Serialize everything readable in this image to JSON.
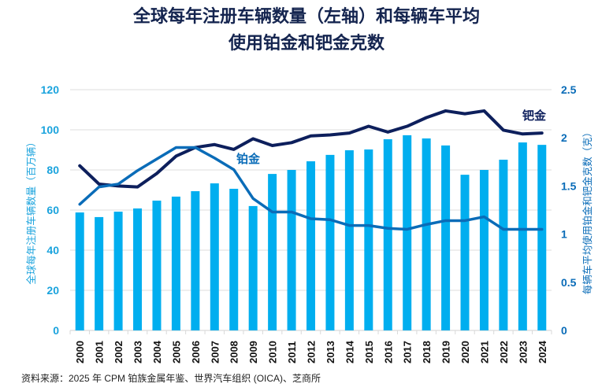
{
  "chart_data": {
    "type": "bar+line",
    "title_line1": "全球每年注册车辆数量（左轴）和每辆车平均",
    "title_line2": "使用铂金和钯金克数",
    "ylabel_left": "全球每年注册车辆数量（百万辆）",
    "ylabel_right": "每辆车平均使用铂金和钯金克数（克）",
    "ylim_left": [
      0,
      120
    ],
    "yticks_left": [
      "0",
      "20",
      "40",
      "60",
      "80",
      "100",
      "120"
    ],
    "ylim_right": [
      0,
      2.5
    ],
    "yticks_right": [
      "0",
      "0.5",
      "1",
      "1.5",
      "2",
      "2.5"
    ],
    "grid": true,
    "categories": [
      "2000",
      "2001",
      "2002",
      "2003",
      "2004",
      "2005",
      "2006",
      "2007",
      "2008",
      "2009",
      "2010",
      "2011",
      "2012",
      "2013",
      "2014",
      "2015",
      "2016",
      "2017",
      "2018",
      "2019",
      "2020",
      "2021",
      "2022",
      "2023",
      "2024"
    ],
    "bars": {
      "axis": "left",
      "color": "#00aeef",
      "values": [
        58.8,
        56.5,
        59.2,
        60.8,
        64.7,
        66.7,
        69.4,
        73.3,
        70.6,
        62,
        78,
        80,
        84.3,
        87.5,
        89.8,
        90.2,
        95.3,
        97.3,
        95.7,
        92.2,
        77.6,
        80,
        85.1,
        93.7,
        92.5
      ]
    },
    "series": [
      {
        "name": "钯金",
        "axis": "right",
        "color": "#0d1f5c",
        "values": [
          1.71,
          1.52,
          1.5,
          1.49,
          1.63,
          1.81,
          1.9,
          1.93,
          1.88,
          1.99,
          1.92,
          1.95,
          2.02,
          2.03,
          2.05,
          2.12,
          2.06,
          2.12,
          2.21,
          2.28,
          2.25,
          2.28,
          2.08,
          2.04,
          2.05
        ]
      },
      {
        "name": "铂金",
        "axis": "right",
        "color": "#0a6cb8",
        "values": [
          1.31,
          1.49,
          1.52,
          1.66,
          1.78,
          1.9,
          1.9,
          1.79,
          1.67,
          1.37,
          1.23,
          1.23,
          1.16,
          1.15,
          1.09,
          1.09,
          1.06,
          1.05,
          1.1,
          1.14,
          1.14,
          1.18,
          1.05,
          1.05,
          1.05
        ]
      }
    ],
    "left_axis_color": "#1aa3dd",
    "right_axis_color": "#0a6cb8"
  },
  "source": "资料来源：2025 年 CPM 铂族金属年鉴、世界汽车组织 (OICA)、芝商所"
}
